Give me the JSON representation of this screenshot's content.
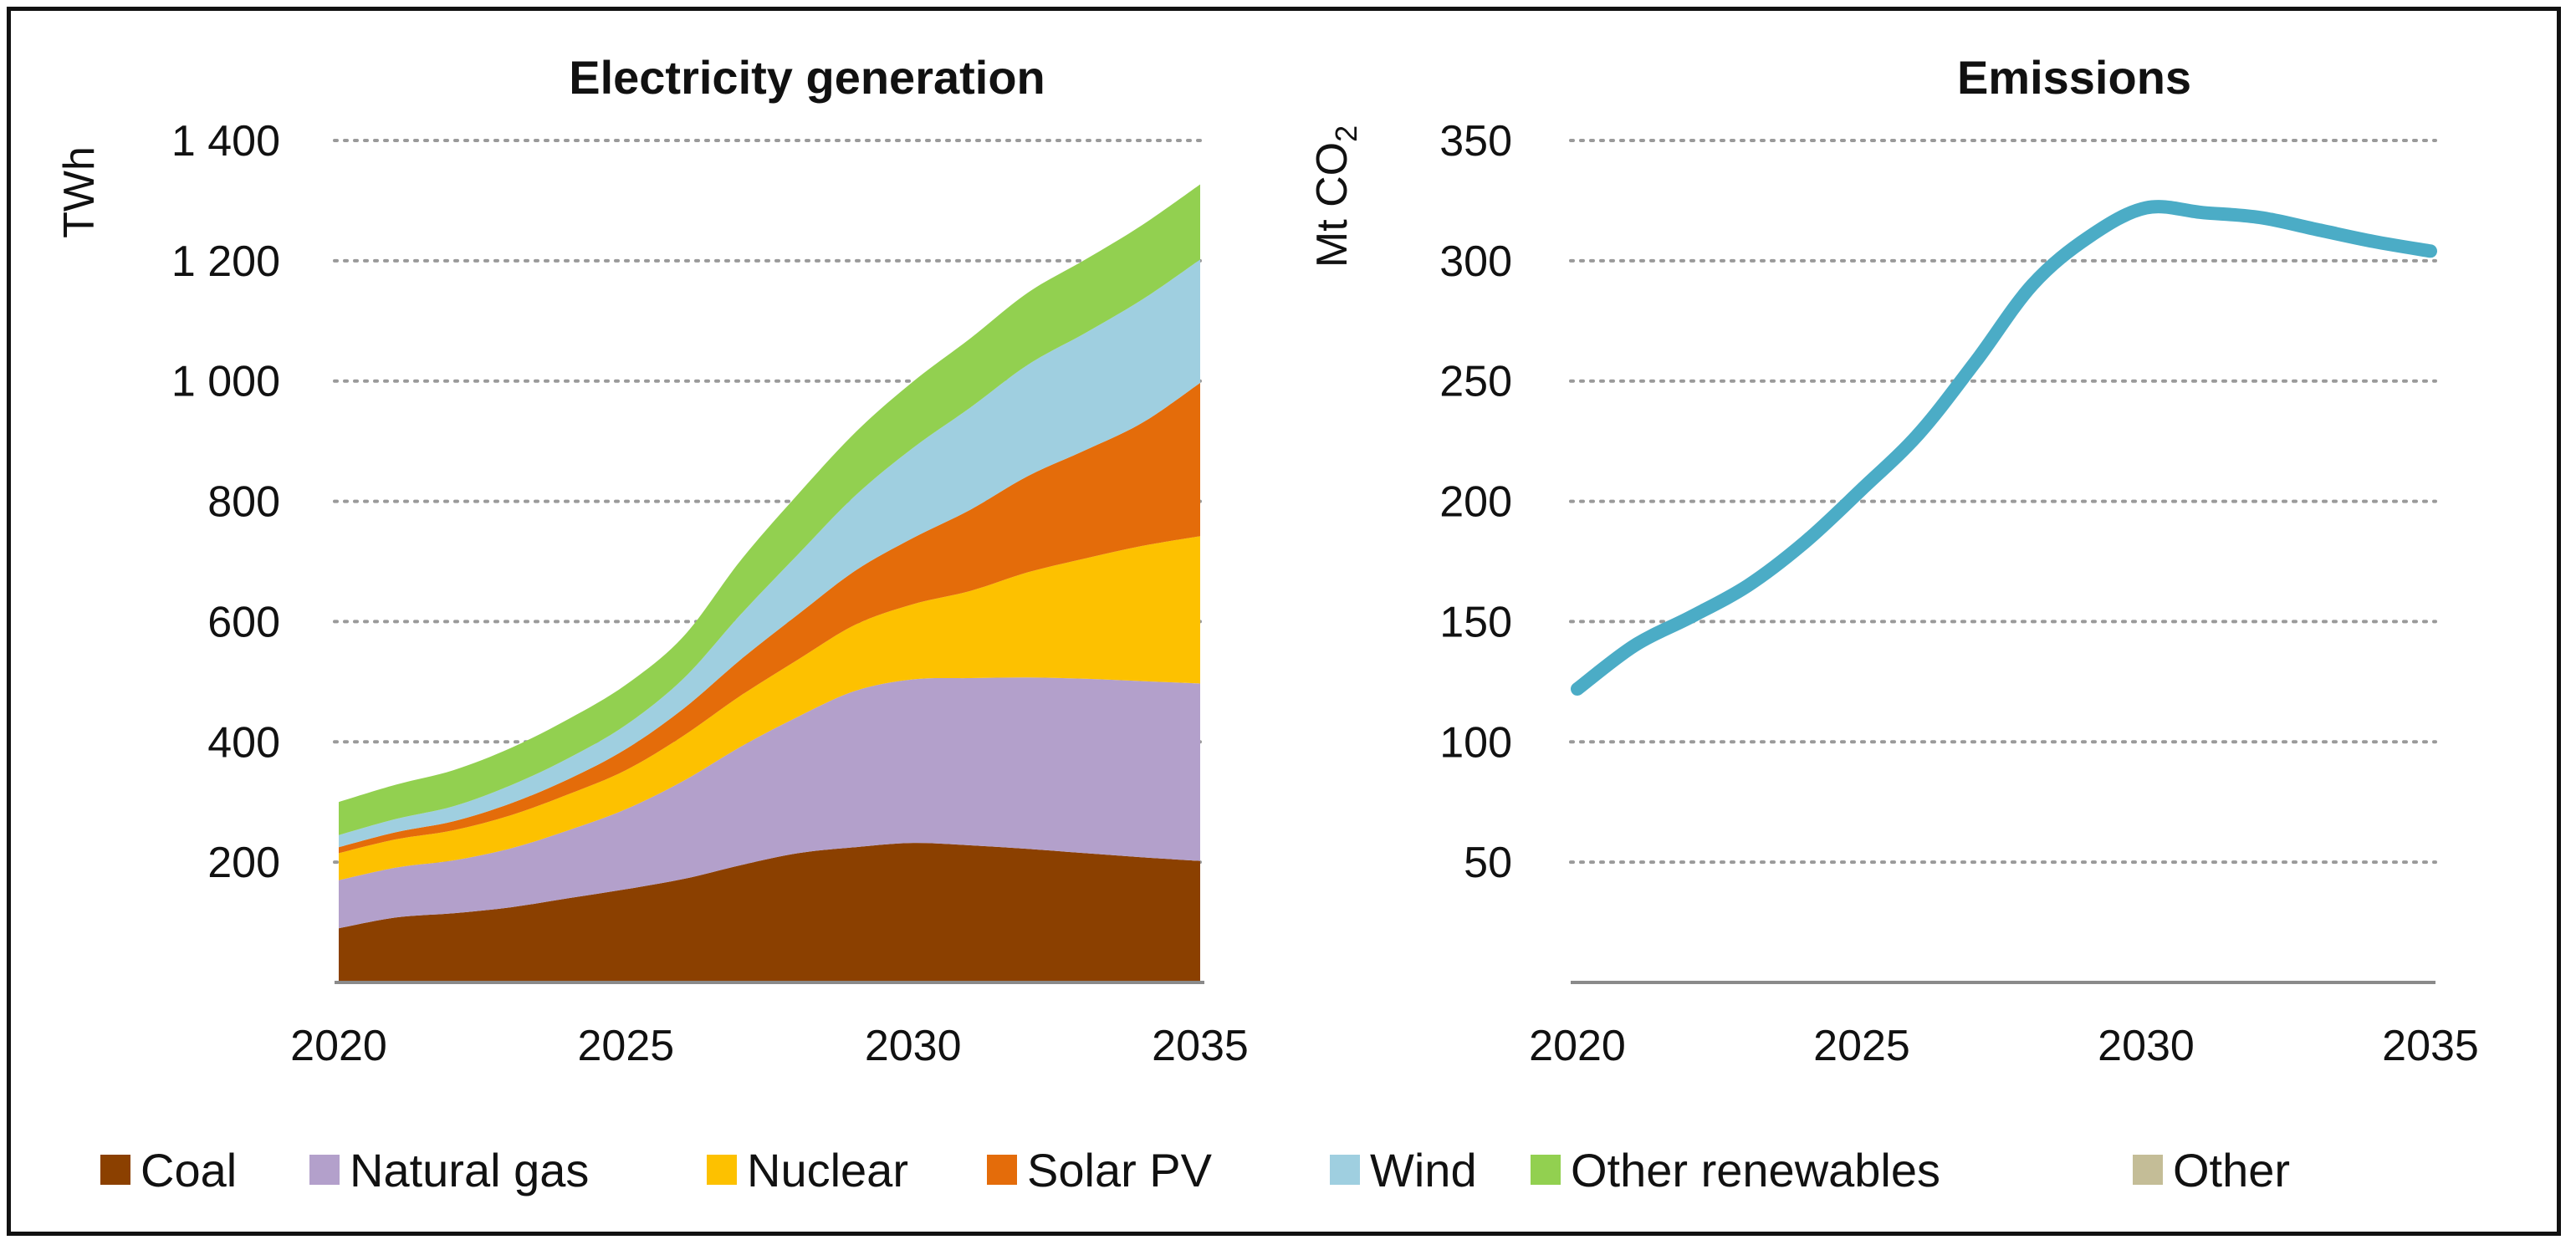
{
  "chart_data": [
    {
      "type": "area",
      "stacked": true,
      "title": "Electricity generation",
      "ylabel": "TWh",
      "xlabel": "",
      "x": [
        2020,
        2021,
        2022,
        2023,
        2024,
        2025,
        2026,
        2027,
        2028,
        2029,
        2030,
        2031,
        2032,
        2033,
        2034,
        2035
      ],
      "xticks": [
        "2020",
        "2025",
        "2030",
        "2035"
      ],
      "yticks": [
        "200",
        "400",
        "600",
        "800",
        "1 000",
        "1 200",
        "1 400"
      ],
      "ylim": [
        0,
        1400
      ],
      "grid": "horizontal-dotted",
      "series": [
        {
          "name": "Coal",
          "color": "#8B4000",
          "values": [
            90,
            108,
            115,
            125,
            140,
            155,
            172,
            195,
            215,
            225,
            232,
            228,
            222,
            215,
            208,
            202
          ]
        },
        {
          "name": "Natural gas",
          "color": "#B3A0CB",
          "values": [
            80,
            83,
            88,
            98,
            113,
            133,
            163,
            197,
            227,
            260,
            272,
            278,
            285,
            290,
            293,
            295
          ]
        },
        {
          "name": "Nuclear",
          "color": "#FDC100",
          "values": [
            45,
            47,
            50,
            55,
            60,
            65,
            75,
            85,
            95,
            110,
            125,
            145,
            175,
            200,
            225,
            245
          ]
        },
        {
          "name": "Solar PV",
          "color": "#E46C0A",
          "values": [
            10,
            12,
            15,
            20,
            25,
            35,
            45,
            60,
            75,
            90,
            110,
            135,
            160,
            180,
            205,
            255
          ]
        },
        {
          "name": "Wind",
          "color": "#9FCFE0",
          "values": [
            20,
            22,
            25,
            30,
            35,
            40,
            50,
            75,
            100,
            125,
            150,
            170,
            185,
            195,
            205,
            205
          ]
        },
        {
          "name": "Other renewables",
          "color": "#92D050",
          "values": [
            55,
            57,
            60,
            62,
            65,
            67,
            70,
            90,
            100,
            105,
            110,
            115,
            120,
            122,
            124,
            125
          ]
        },
        {
          "name": "Other",
          "color": "#C4BD97",
          "values": [
            0,
            0,
            0,
            0,
            0,
            0,
            0,
            0,
            0,
            0,
            0,
            0,
            0,
            0,
            0,
            0
          ]
        }
      ]
    },
    {
      "type": "line",
      "title": "Emissions",
      "ylabel": "Mt CO2",
      "ylabel_main": "Mt CO",
      "ylabel_sub": "2",
      "xlabel": "",
      "x": [
        2020,
        2021,
        2022,
        2023,
        2024,
        2025,
        2026,
        2027,
        2028,
        2029,
        2030,
        2031,
        2032,
        2033,
        2034,
        2035
      ],
      "xticks": [
        "2020",
        "2025",
        "2030",
        "2035"
      ],
      "yticks": [
        "50",
        "100",
        "150",
        "200",
        "250",
        "300",
        "350"
      ],
      "ylim": [
        0,
        350
      ],
      "grid": "horizontal-dotted",
      "series": [
        {
          "name": "Emissions",
          "color": "#4BACC6",
          "values": [
            122,
            140,
            152,
            165,
            183,
            205,
            228,
            258,
            290,
            310,
            322,
            320,
            318,
            313,
            308,
            304
          ]
        }
      ]
    }
  ],
  "legend": [
    {
      "label": "Coal",
      "color": "#8B4000"
    },
    {
      "label": "Natural gas",
      "color": "#B3A0CB"
    },
    {
      "label": "Nuclear",
      "color": "#FDC100"
    },
    {
      "label": "Solar PV",
      "color": "#E46C0A"
    },
    {
      "label": "Wind",
      "color": "#9FCFE0"
    },
    {
      "label": "Other renewables",
      "color": "#92D050"
    },
    {
      "label": "Other",
      "color": "#C4BD97"
    }
  ]
}
